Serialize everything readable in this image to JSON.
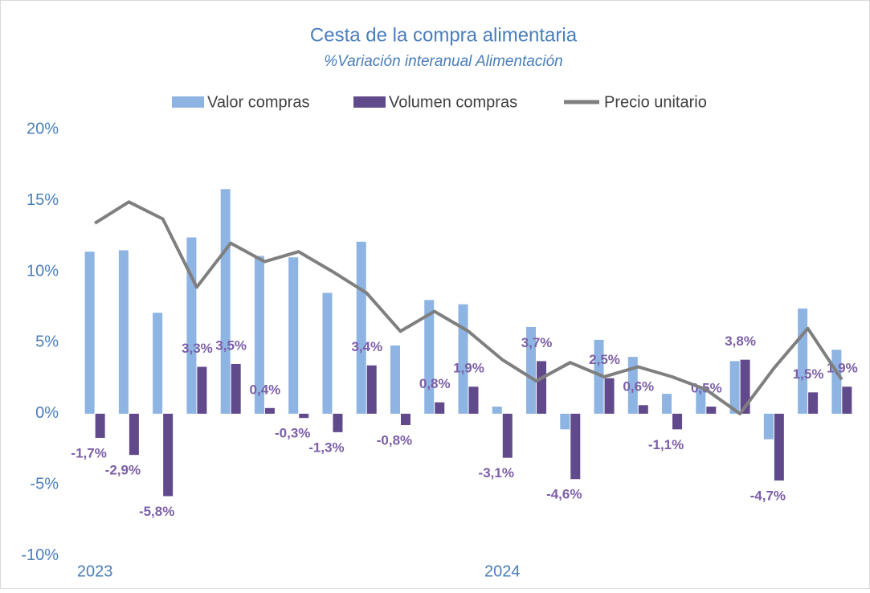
{
  "chart_data": {
    "type": "bar_line",
    "title": "Cesta de la compra alimentaria",
    "subtitle": "%Variación interanual Alimentación",
    "categories": [
      "2023",
      null,
      null,
      null,
      null,
      null,
      null,
      null,
      null,
      null,
      null,
      null,
      "2024",
      null,
      null,
      null,
      null,
      null,
      null,
      null,
      null,
      null,
      null
    ],
    "series": [
      {
        "name": "Valor compras",
        "type": "bar",
        "color": "#8db4e2",
        "values": [
          11.4,
          11.5,
          7.1,
          12.4,
          15.8,
          11.1,
          11.0,
          8.5,
          12.1,
          4.8,
          8.0,
          7.7,
          0.5,
          6.1,
          -1.1,
          5.2,
          4.0,
          1.4,
          1.9,
          3.7,
          -1.8,
          7.4,
          4.5
        ]
      },
      {
        "name": "Volumen compras",
        "type": "bar",
        "color": "#604a8b",
        "values": [
          -1.7,
          -2.9,
          -5.8,
          3.3,
          3.5,
          0.4,
          -0.3,
          -1.3,
          3.4,
          -0.8,
          0.8,
          1.9,
          -3.1,
          3.7,
          -4.6,
          2.5,
          0.6,
          -1.1,
          0.5,
          3.8,
          -4.7,
          1.5,
          1.9
        ],
        "value_labels": [
          "-1,7%",
          "-2,9%",
          "-5,8%",
          "3,3%",
          "3,5%",
          "0,4%",
          "-0,3%",
          "-1,3%",
          "3,4%",
          "-0,8%",
          "0,8%",
          "1,9%",
          "-3,1%",
          "3,7%",
          "-4,6%",
          "2,5%",
          "0,6%",
          "-1,1%",
          "0,5%",
          "3,8%",
          "-4,7%",
          "1,5%",
          "1,9%"
        ],
        "label_color": "#7b5fa8"
      },
      {
        "name": "Precio unitario",
        "type": "line",
        "color": "#7f7f7f",
        "values": [
          13.4,
          14.9,
          13.7,
          8.9,
          12.0,
          10.7,
          11.4,
          10.0,
          8.5,
          5.8,
          7.2,
          5.8,
          3.8,
          2.3,
          3.6,
          2.6,
          3.3,
          2.6,
          1.7,
          0.0,
          3.2,
          6.0,
          2.4
        ]
      }
    ],
    "ylim": [
      -11.2,
      20.4
    ],
    "yticks": [
      {
        "value": 20,
        "label": "20%"
      },
      {
        "value": 15,
        "label": "15%"
      },
      {
        "value": 10,
        "label": "10%"
      },
      {
        "value": 5,
        "label": "5%"
      },
      {
        "value": 0,
        "label": "0%"
      },
      {
        "value": -5,
        "label": "-5%"
      },
      {
        "value": -10,
        "label": "-10%"
      }
    ],
    "grid": false,
    "legend": "top"
  }
}
